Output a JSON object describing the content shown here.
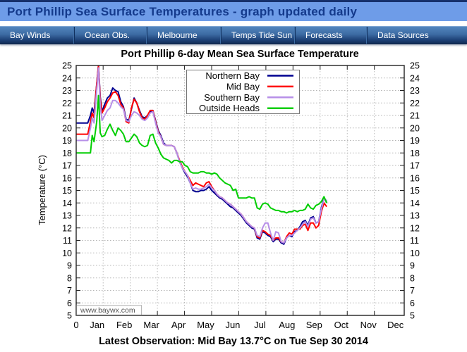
{
  "header": {
    "title": "Port Phillip Sea Surface Temperatures - graph updated daily"
  },
  "nav": {
    "items": [
      {
        "label": "Bay Winds"
      },
      {
        "label": "Ocean Obs."
      },
      {
        "label": "Melbourne"
      },
      {
        "label": "Temps Tide Sun"
      },
      {
        "label": "Forecasts"
      },
      {
        "label": "Data Sources"
      }
    ]
  },
  "theme": {
    "header_bg": "#6e9ce8",
    "header_text": "#143a8c",
    "nav_top": "#5285bd",
    "nav_bottom": "#122c55",
    "nav_text": "#ffffff",
    "grid_color": "#b5b5b5",
    "axis_color": "#222222"
  },
  "chart_data": {
    "type": "line",
    "title": "Port Phillip 6-day Mean Sea Surface Temperature",
    "ylabel": "Temperature (°C)",
    "ylim": [
      5,
      25
    ],
    "ytick_step": 1,
    "grid": true,
    "legend_position": "top-center",
    "watermark": "www.baywx.com",
    "xtick_origin_label": "0",
    "xtick_labels": [
      "Jan",
      "Feb",
      "Mar",
      "Apr",
      "May",
      "Jun",
      "Jul",
      "Aug",
      "Sep",
      "Oct",
      "Nov",
      "Dec"
    ],
    "x_unit": "day-of-year",
    "x_days": [
      -8,
      0,
      5,
      8,
      10,
      12,
      15,
      17,
      19,
      21,
      24,
      27,
      30,
      33,
      36,
      39,
      42,
      45,
      48,
      51,
      54,
      57,
      60,
      63,
      66,
      69,
      72,
      75,
      78,
      81,
      84,
      87,
      90,
      93,
      96,
      99,
      102,
      105,
      108,
      111,
      114,
      117,
      120,
      123,
      126,
      129,
      132,
      135,
      138,
      141,
      144,
      147,
      150,
      153,
      156,
      159,
      162,
      165,
      168,
      171,
      174,
      177,
      180,
      183,
      186,
      189,
      192,
      195,
      198,
      201,
      204,
      207,
      210,
      213,
      216,
      219,
      222,
      225,
      228,
      231,
      234,
      237,
      240,
      243,
      246,
      249,
      252,
      255,
      258,
      261,
      264,
      267,
      270,
      273
    ],
    "series": [
      {
        "name": "Northern Bay",
        "color": "#000090",
        "values": [
          20.4,
          20.4,
          20.4,
          21.0,
          21.6,
          21.2,
          23.5,
          25.0,
          22.5,
          21.3,
          21.9,
          22.4,
          22.6,
          23.2,
          23.0,
          22.9,
          22.1,
          21.7,
          20.7,
          20.6,
          21.5,
          22.4,
          22.0,
          21.4,
          20.9,
          20.8,
          21.0,
          21.3,
          21.4,
          20.6,
          19.8,
          19.4,
          18.8,
          18.6,
          18.6,
          18.6,
          18.5,
          18.0,
          17.3,
          16.8,
          16.4,
          16.1,
          15.6,
          15.0,
          14.9,
          14.9,
          15.0,
          15.0,
          15.1,
          15.3,
          15.0,
          14.8,
          14.6,
          14.4,
          14.3,
          14.1,
          13.9,
          13.7,
          13.6,
          13.4,
          13.2,
          13.0,
          12.7,
          12.4,
          12.2,
          12.0,
          11.9,
          11.2,
          11.1,
          11.7,
          11.6,
          11.4,
          11.3,
          10.9,
          11.1,
          11.1,
          10.8,
          10.7,
          11.2,
          11.4,
          11.3,
          11.7,
          11.8,
          12.1,
          12.5,
          12.6,
          12.2,
          12.8,
          12.9,
          12.4,
          12.5,
          13.6,
          14.4,
          14.1
        ]
      },
      {
        "name": "Mid Bay",
        "color": "#ff0000",
        "values": [
          19.5,
          19.5,
          19.5,
          20.5,
          21.2,
          20.8,
          23.5,
          25.0,
          22.3,
          21.2,
          21.6,
          22.1,
          22.4,
          22.8,
          22.9,
          22.6,
          21.9,
          21.6,
          20.5,
          20.4,
          21.6,
          22.3,
          22.0,
          21.3,
          20.8,
          20.7,
          21.0,
          21.4,
          21.4,
          20.5,
          19.7,
          19.3,
          18.7,
          18.6,
          18.6,
          18.6,
          18.5,
          18.0,
          17.4,
          16.9,
          16.5,
          16.2,
          15.8,
          15.4,
          15.6,
          15.5,
          15.4,
          15.3,
          15.6,
          15.7,
          15.3,
          15.0,
          14.7,
          14.5,
          14.4,
          14.2,
          14.0,
          13.9,
          13.7,
          13.5,
          13.3,
          13.1,
          12.8,
          12.5,
          12.3,
          12.1,
          12.0,
          11.3,
          11.2,
          11.8,
          11.7,
          11.5,
          11.4,
          11.0,
          11.2,
          11.2,
          10.9,
          10.8,
          11.3,
          11.6,
          11.5,
          11.9,
          11.9,
          11.9,
          12.2,
          12.3,
          11.8,
          12.4,
          12.4,
          12.0,
          12.2,
          13.3,
          14.0,
          13.7
        ]
      },
      {
        "name": "Southern Bay",
        "color": "#b78fe8",
        "values": [
          19.0,
          19.0,
          19.0,
          20.0,
          20.8,
          20.4,
          23.0,
          24.8,
          21.8,
          20.6,
          21.0,
          21.4,
          21.6,
          22.2,
          22.2,
          22.0,
          21.7,
          21.5,
          20.6,
          20.5,
          21.0,
          21.3,
          21.2,
          21.0,
          20.7,
          20.6,
          20.8,
          21.2,
          21.3,
          20.4,
          19.6,
          19.3,
          18.7,
          18.6,
          18.6,
          18.6,
          18.5,
          18.0,
          17.3,
          16.8,
          16.5,
          16.2,
          15.6,
          15.1,
          15.2,
          15.1,
          15.1,
          15.2,
          15.3,
          15.5,
          15.2,
          15.0,
          14.7,
          14.5,
          14.4,
          14.2,
          14.0,
          13.9,
          13.7,
          13.5,
          13.3,
          13.1,
          12.8,
          12.5,
          12.3,
          12.1,
          12.0,
          11.4,
          11.3,
          12.0,
          12.4,
          12.4,
          11.6,
          11.0,
          11.7,
          11.6,
          10.9,
          10.8,
          11.2,
          11.4,
          11.4,
          11.6,
          11.8,
          12.0,
          12.3,
          12.5,
          12.1,
          12.7,
          12.8,
          12.4,
          12.5,
          13.5,
          14.3,
          14.2
        ]
      },
      {
        "name": "Outside Heads",
        "color": "#00ce00",
        "values": [
          18.0,
          18.0,
          18.0,
          18.0,
          19.4,
          18.9,
          20.5,
          22.6,
          19.6,
          19.3,
          19.4,
          19.9,
          20.3,
          19.8,
          19.4,
          20.0,
          19.8,
          19.5,
          18.9,
          18.9,
          19.2,
          19.5,
          19.3,
          18.8,
          18.6,
          18.5,
          18.6,
          19.4,
          19.5,
          18.8,
          18.4,
          17.9,
          17.6,
          17.5,
          17.4,
          17.2,
          17.4,
          17.4,
          17.3,
          17.3,
          17.0,
          16.9,
          16.5,
          16.4,
          16.4,
          16.4,
          16.5,
          16.5,
          16.4,
          16.4,
          16.3,
          16.4,
          16.3,
          16.0,
          15.8,
          15.6,
          15.5,
          15.4,
          15.0,
          15.1,
          14.4,
          14.4,
          14.4,
          14.4,
          14.5,
          14.4,
          14.4,
          13.6,
          13.5,
          13.9,
          14.0,
          13.9,
          13.6,
          13.5,
          13.4,
          13.4,
          13.3,
          13.3,
          13.2,
          13.3,
          13.3,
          13.4,
          13.3,
          13.4,
          13.4,
          13.5,
          13.9,
          13.6,
          13.5,
          13.8,
          13.9,
          14.1,
          14.5,
          14.0
        ]
      }
    ]
  },
  "caption": {
    "text": "Latest Observation: Mid Bay 13.7°C on Tue Sep 30 2014"
  }
}
